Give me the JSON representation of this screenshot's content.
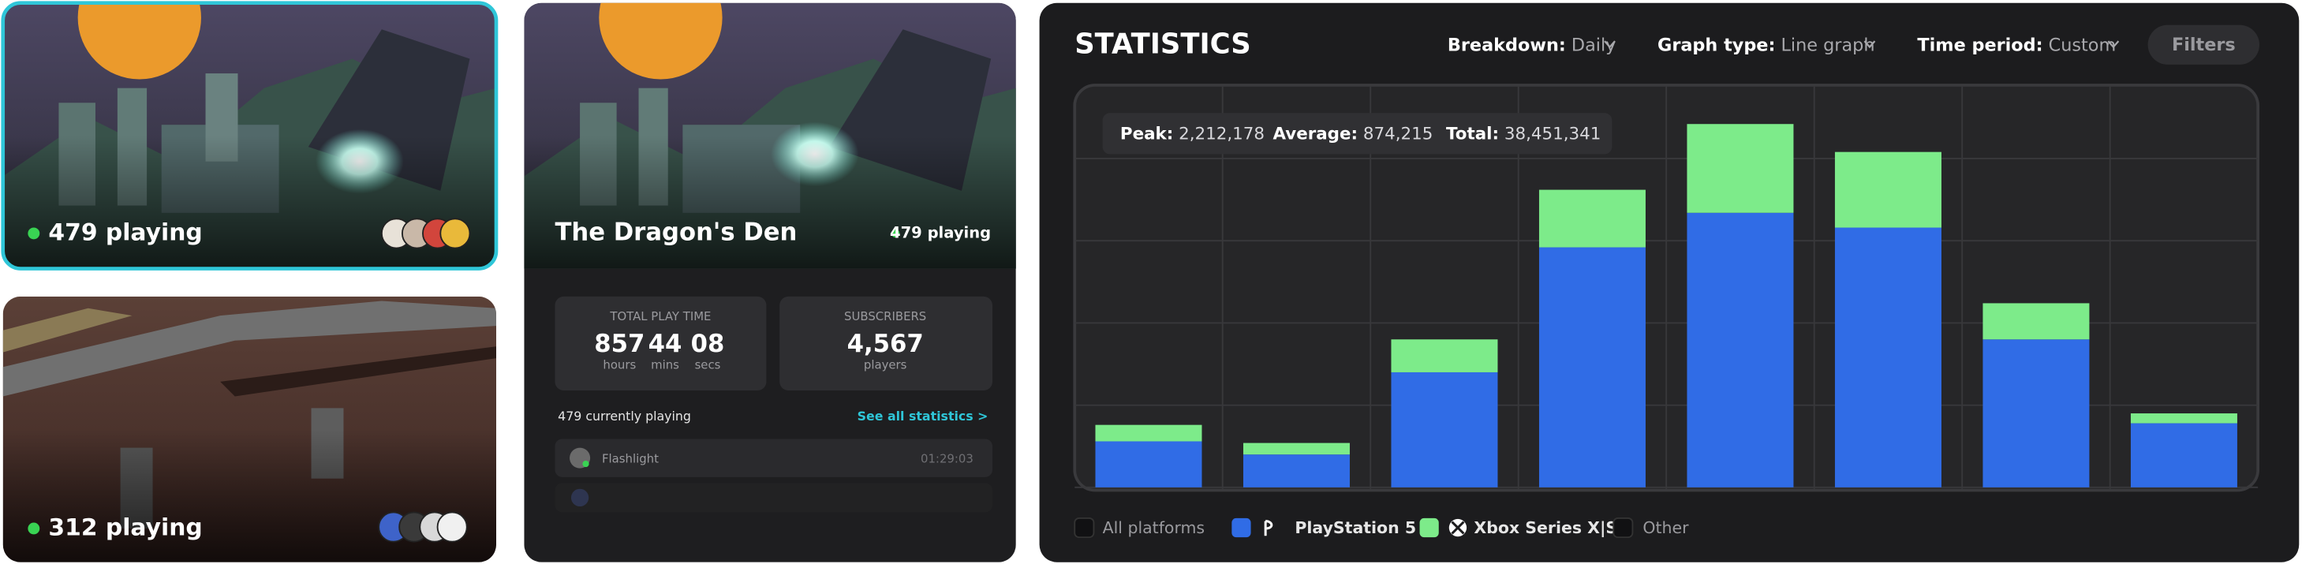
{
  "cards": [
    {
      "playing": "479 playing"
    },
    {
      "playing": "312 playing"
    }
  ],
  "game": {
    "title": "The Dragon's Den",
    "playing": "479 playing",
    "play_time": {
      "label": "TOTAL PLAY TIME",
      "parts": [
        {
          "value": "857",
          "unit": "hours"
        },
        {
          "value": "44",
          "unit": "mins"
        },
        {
          "value": "08",
          "unit": "secs"
        }
      ]
    },
    "subscribers": {
      "label": "SUBSCRIBERS",
      "value": "4,567",
      "unit": "players"
    },
    "currently": "479 currently playing",
    "see_all": "See all statistics >",
    "players": [
      {
        "name": "Flashlight",
        "time": "01:29:03"
      }
    ]
  },
  "statistics": {
    "title": "STATISTICS",
    "controls": [
      {
        "label": "Breakdown:",
        "value": "Daily"
      },
      {
        "label": "Graph type:",
        "value": "Line graph"
      },
      {
        "label": "Time period:",
        "value": "Custom"
      }
    ],
    "filters": "Filters",
    "summary": [
      {
        "label": "Peak:",
        "value": "2,212,178"
      },
      {
        "label": "Average:",
        "value": "874,215"
      },
      {
        "label": "Total:",
        "value": "38,451,341"
      }
    ],
    "all_option": "All platforms",
    "other_option": "Other",
    "chart_data": {
      "type": "bar",
      "stacked": true,
      "categories": [
        null,
        null,
        null,
        null,
        null,
        null,
        null,
        null
      ],
      "series": [
        {
          "name": "PlayStation 5",
          "color": "#306ce6",
          "values": [
            280000,
            200000,
            700000,
            1460000,
            1670000,
            1580000,
            900000,
            390000
          ]
        },
        {
          "name": "Xbox Series X|S",
          "color": "#7deb8a",
          "values": [
            100000,
            70000,
            200000,
            350000,
            540000,
            460000,
            220000,
            60000
          ]
        }
      ],
      "ylim": [
        0,
        2500000
      ],
      "yticks": [
        0,
        500000,
        1000000,
        1500000,
        2000000
      ],
      "grid": true
    }
  }
}
